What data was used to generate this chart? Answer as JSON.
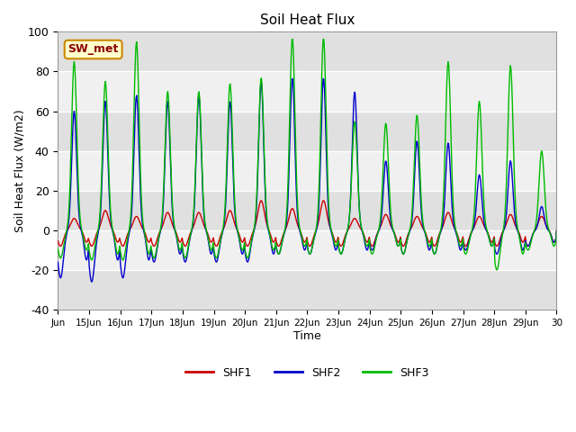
{
  "title": "Soil Heat Flux",
  "xlabel": "Time",
  "ylabel": "Soil Heat Flux (W/m2)",
  "ylim": [
    -40,
    100
  ],
  "xlim": [
    0,
    16
  ],
  "fig_bg": "#ffffff",
  "plot_bg": "#f0f0f0",
  "band_light": "#f0f0f0",
  "band_dark": "#e0e0e0",
  "shf1_color": "#cc0000",
  "shf2_color": "#0000cc",
  "shf3_color": "#00bb00",
  "xtick_labels": [
    "Jun",
    "15Jun",
    "16Jun",
    "17Jun",
    "18Jun",
    "19Jun",
    "20Jun",
    "21Jun",
    "22Jun",
    "23Jun",
    "24Jun",
    "25Jun",
    "26Jun",
    "27Jun",
    "28Jun",
    "29Jun",
    "30"
  ],
  "ytick_values": [
    -40,
    -20,
    0,
    20,
    40,
    60,
    80,
    100
  ],
  "grid_color": "#ffffff",
  "linewidth": 1.0,
  "annotation_text": "SW_met",
  "annotation_bg": "#ffffcc",
  "annotation_edge": "#cc8800"
}
